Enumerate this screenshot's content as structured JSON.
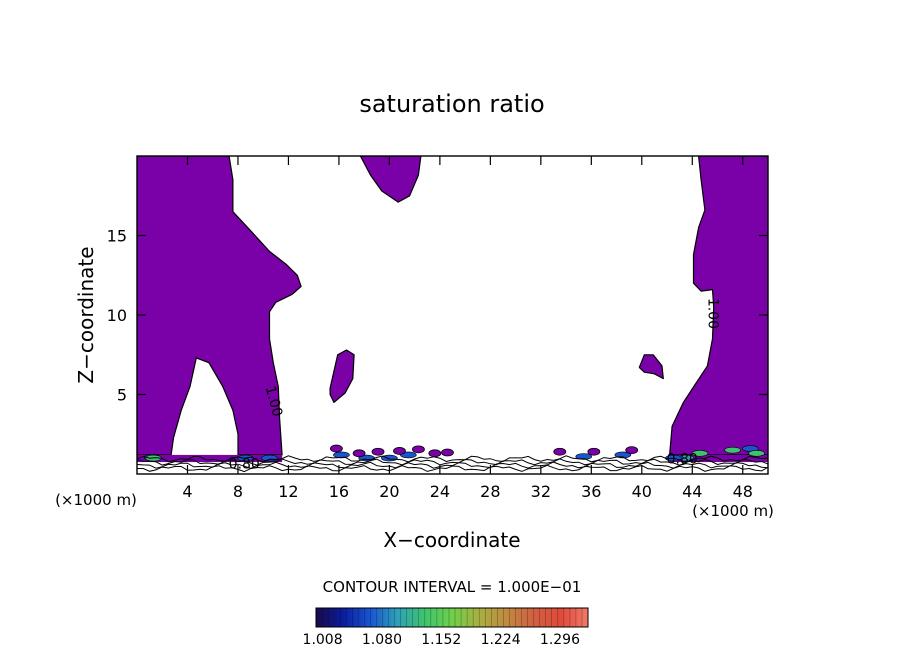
{
  "chart_data": {
    "type": "heatmap",
    "title": "saturation ratio",
    "xlabel": "X−coordinate",
    "ylabel": "Z−coordinate",
    "x_units": "(×1000 m)",
    "y_units": "(×1000 m)",
    "xlim": [
      0,
      50
    ],
    "ylim": [
      0,
      20
    ],
    "x_ticks": [
      4,
      8,
      12,
      16,
      20,
      24,
      28,
      32,
      36,
      40,
      44,
      48
    ],
    "y_ticks": [
      5,
      10,
      15
    ],
    "contour_interval_label": "CONTOUR INTERVAL = 1.000E−01",
    "contour_labels": [
      {
        "text": "1.00",
        "x": 10.5,
        "y": 4.5,
        "rotation": 75
      },
      {
        "text": "1.00",
        "x": 45.3,
        "y": 10.1,
        "rotation": 90
      },
      {
        "text": "0.80",
        "x": 8.5,
        "y": 0.35,
        "rotation": 0
      },
      {
        "text": "0.80",
        "x": 43.2,
        "y": 0.65,
        "rotation": 0
      }
    ],
    "colorbar": {
      "tick_labels": [
        "1.008",
        "1.080",
        "1.152",
        "1.224",
        "1.296"
      ],
      "range": [
        1.0,
        1.33
      ],
      "colors": [
        "#1a0a4a",
        "#0a1e9e",
        "#1a55d0",
        "#2fa0b8",
        "#3ec46e",
        "#6ed04a",
        "#a8b040",
        "#c08a40",
        "#d06040",
        "#e04a3a",
        "#f07a6a"
      ]
    },
    "fill_color": "#7a00a8",
    "regions": [
      {
        "name": "left supersaturated column",
        "polygon": [
          [
            0,
            20
          ],
          [
            7.3,
            20
          ],
          [
            7.6,
            18.5
          ],
          [
            7.6,
            16.5
          ],
          [
            9,
            15.3
          ],
          [
            10.5,
            14
          ],
          [
            11.8,
            13.2
          ],
          [
            12.7,
            12.5
          ],
          [
            13,
            11.8
          ],
          [
            12.3,
            11.3
          ],
          [
            11,
            10.8
          ],
          [
            10.5,
            10.2
          ],
          [
            10.5,
            8.5
          ],
          [
            10.8,
            7
          ],
          [
            11.2,
            5.5
          ],
          [
            11.3,
            3.5
          ],
          [
            11.5,
            1.2
          ],
          [
            8,
            1.2
          ],
          [
            8,
            2.5
          ],
          [
            7.6,
            4
          ],
          [
            6.8,
            5.5
          ],
          [
            5.7,
            7
          ],
          [
            4.7,
            7.3
          ],
          [
            4.2,
            5.5
          ],
          [
            3.5,
            4
          ],
          [
            2.9,
            2.3
          ],
          [
            2.7,
            1.2
          ],
          [
            0,
            1.2
          ]
        ]
      },
      {
        "name": "upper central lobe",
        "polygon": [
          [
            17.7,
            20
          ],
          [
            22.5,
            20
          ],
          [
            22.3,
            18.8
          ],
          [
            21.6,
            17.5
          ],
          [
            20.7,
            17.1
          ],
          [
            19.4,
            17.8
          ],
          [
            18.5,
            18.8
          ]
        ]
      },
      {
        "name": "central blob",
        "polygon": [
          [
            15.3,
            5.4
          ],
          [
            15.9,
            7.5
          ],
          [
            16.6,
            7.8
          ],
          [
            17.2,
            7.5
          ],
          [
            17.1,
            6
          ],
          [
            16.5,
            5.1
          ],
          [
            15.6,
            4.5
          ],
          [
            15.3,
            5
          ]
        ]
      },
      {
        "name": "right blob",
        "polygon": [
          [
            39.8,
            6.7
          ],
          [
            40.2,
            7.5
          ],
          [
            40.9,
            7.5
          ],
          [
            41.6,
            6.8
          ],
          [
            41.7,
            6
          ],
          [
            41,
            6.3
          ],
          [
            40.2,
            6.4
          ]
        ]
      },
      {
        "name": "right supersaturated column",
        "polygon": [
          [
            44.5,
            20
          ],
          [
            50,
            20
          ],
          [
            50,
            1.2
          ],
          [
            42.2,
            1.2
          ],
          [
            42.4,
            3
          ],
          [
            43.3,
            4.5
          ],
          [
            44.2,
            5.6
          ],
          [
            45.2,
            6.8
          ],
          [
            45.6,
            8.5
          ],
          [
            45.7,
            10.5
          ],
          [
            45.6,
            11.6
          ],
          [
            44.7,
            11.5
          ],
          [
            44.1,
            12
          ],
          [
            44.1,
            13.8
          ],
          [
            44.5,
            15.5
          ],
          [
            45,
            16.6
          ],
          [
            44.7,
            18.5
          ]
        ]
      }
    ]
  }
}
